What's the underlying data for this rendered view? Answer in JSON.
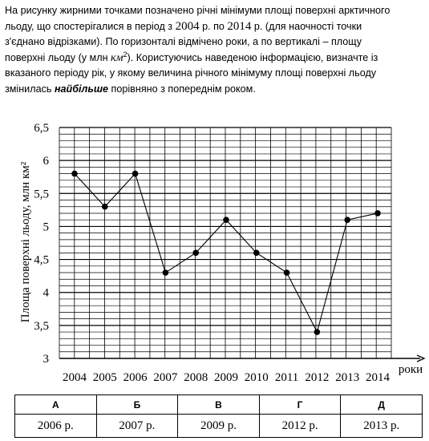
{
  "question": {
    "l1": "На рисунку жирними точками позначено річні мінімуми площі поверхні арктичного",
    "l2a": "льоду, що спостерігалися в період з ",
    "y_from": "2004",
    "l2b": " р. по ",
    "y_to": "2014",
    "l2c": " р. (для наочності точки",
    "l3": "з'єднано відрізками). По горизонталі відмічено роки, а по вертикалі – площу",
    "l4a": "поверхні льоду (у млн ",
    "unit": "км",
    "unit_pow": "2",
    "l4b": "). Користуючись наведеною інформацією, визначте із",
    "l5": "вказаного періоду рік, у якому величина річного мінімуму площі поверхні льоду",
    "l6a": "змінилась ",
    "emph": "найбільше",
    "l6b": " порівняно з попереднім роком."
  },
  "chart_data": {
    "type": "line",
    "x": [
      "2004",
      "2005",
      "2006",
      "2007",
      "2008",
      "2009",
      "2010",
      "2011",
      "2012",
      "2013",
      "2014"
    ],
    "values": [
      5.8,
      5.3,
      5.8,
      4.3,
      4.6,
      5.1,
      4.6,
      4.3,
      3.4,
      5.1,
      5.2
    ],
    "xlabel": "роки",
    "ylabel": "Площа поверхні льоду, млн км²",
    "ylim": [
      3,
      6.5
    ],
    "yticks": [
      "3",
      "3,5",
      "4",
      "4,5",
      "5",
      "5,5",
      "6",
      "6,5"
    ],
    "minor_step": 0.1,
    "grid": true,
    "marker_color": "#000000",
    "line_color": "#000000"
  },
  "answers": {
    "headers": [
      "А",
      "Б",
      "В",
      "Г",
      "Д"
    ],
    "values": [
      "2006 р.",
      "2007 р.",
      "2009 р.",
      "2012 р.",
      "2013 р."
    ]
  }
}
